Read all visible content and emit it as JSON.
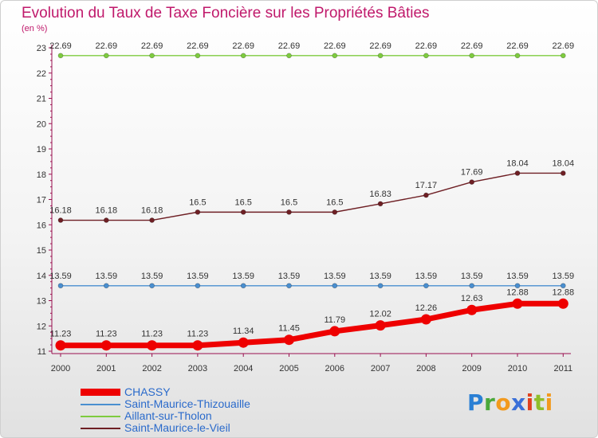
{
  "chart_data": {
    "type": "line",
    "title": "Evolution du Taux de Taxe Foncière sur les Propriétés Bâties",
    "unit_label": "(en %)",
    "x": [
      "2000",
      "2001",
      "2002",
      "2003",
      "2004",
      "2005",
      "2006",
      "2007",
      "2008",
      "2009",
      "2010",
      "2011"
    ],
    "ylim": [
      11,
      23
    ],
    "y_ticks": [
      11,
      12,
      13,
      14,
      15,
      16,
      17,
      18,
      19,
      20,
      21,
      22,
      23
    ],
    "series": [
      {
        "name": "Aillant-sur-Tholon",
        "color": "#7ecb3f",
        "values": [
          22.69,
          22.69,
          22.69,
          22.69,
          22.69,
          22.69,
          22.69,
          22.69,
          22.69,
          22.69,
          22.69,
          22.69
        ],
        "labels": [
          "22.69",
          "22.69",
          "22.69",
          "22.69",
          "22.69",
          "22.69",
          "22.69",
          "22.69",
          "22.69",
          "22.69",
          "22.69",
          "22.69"
        ]
      },
      {
        "name": "Saint-Maurice-le-Vieil",
        "color": "#6e1f24",
        "values": [
          16.18,
          16.18,
          16.18,
          16.5,
          16.5,
          16.5,
          16.5,
          16.83,
          17.17,
          17.69,
          18.04,
          18.04
        ],
        "labels": [
          "16.18",
          "16.18",
          "16.18",
          "16.5",
          "16.5",
          "16.5",
          "16.5",
          "16.83",
          "17.17",
          "17.69",
          "18.04",
          "18.04"
        ]
      },
      {
        "name": "Saint-Maurice-Thizouaille",
        "color": "#4a8fd0",
        "values": [
          13.59,
          13.59,
          13.59,
          13.59,
          13.59,
          13.59,
          13.59,
          13.59,
          13.59,
          13.59,
          13.59,
          13.59
        ],
        "labels": [
          "13.59",
          "13.59",
          "13.59",
          "13.59",
          "13.59",
          "13.59",
          "13.59",
          "13.59",
          "13.59",
          "13.59",
          "13.59",
          "13.59"
        ]
      },
      {
        "name": "CHASSY",
        "color": "#ee0000",
        "values": [
          11.23,
          11.23,
          11.23,
          11.23,
          11.34,
          11.45,
          11.79,
          12.02,
          12.26,
          12.63,
          12.88,
          12.88
        ],
        "labels": [
          "11.23",
          "11.23",
          "11.23",
          "11.23",
          "11.34",
          "11.45",
          "11.79",
          "12.02",
          "12.26",
          "12.63",
          "12.88",
          "12.88"
        ]
      }
    ]
  },
  "legend": [
    {
      "name": "CHASSY",
      "color": "#ee0000",
      "style": "thick"
    },
    {
      "name": "Saint-Maurice-Thizouaille",
      "color": "#4a8fd0",
      "style": "thin"
    },
    {
      "name": "Aillant-sur-Tholon",
      "color": "#7ecb3f",
      "style": "thin"
    },
    {
      "name": "Saint-Maurice-le-Vieil",
      "color": "#6e1f24",
      "style": "thin"
    }
  ],
  "brand": {
    "letters": [
      "P",
      "r",
      "o",
      "x",
      "i",
      "t",
      "i"
    ],
    "colors": [
      "#2a7fd4",
      "#4aa83a",
      "#f29a1e",
      "#3a6fd8",
      "#e0401e",
      "#8fbe2a",
      "#f29a1e"
    ]
  }
}
